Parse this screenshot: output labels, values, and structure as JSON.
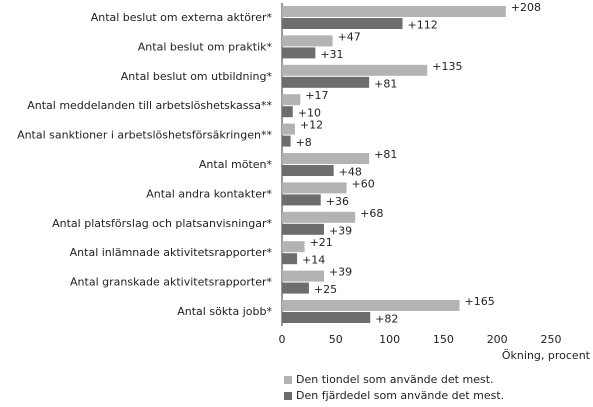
{
  "chart_data": {
    "type": "hbar",
    "categories": [
      "Antal beslut om externa aktörer*",
      "Antal beslut om praktik*",
      "Antal beslut om utbildning*",
      "Antal meddelanden till arbetslöshetskassa**",
      "Antal sanktioner i arbetslöshetsförsäkringen**",
      "Antal möten*",
      "Antal andra kontakter*",
      "Antal platsförslag och platsanvisningar*",
      "Antal inlämnade aktivitetsrapporter*",
      "Antal granskade aktivitetsrapporter*",
      "Antal sökta jobb*"
    ],
    "series": [
      {
        "name": "Den tiondel som använde det mest.",
        "color": "#b3b3b3",
        "values": [
          208,
          47,
          135,
          17,
          12,
          81,
          60,
          68,
          21,
          39,
          165
        ],
        "value_labels": [
          "+208",
          "+47",
          "+135",
          "+17",
          "+12",
          "+81",
          "+60",
          "+68",
          "+21",
          "+39",
          "+165"
        ]
      },
      {
        "name": "Den fjärdedel som använde det mest.",
        "color": "#6d6d6d",
        "values": [
          112,
          31,
          81,
          10,
          8,
          48,
          36,
          39,
          14,
          25,
          82
        ],
        "value_labels": [
          "+112",
          "+31",
          "+81",
          "+10",
          "+8",
          "+48",
          "+36",
          "+39",
          "+14",
          "+25",
          "+82"
        ]
      }
    ],
    "xlabel": "Ökning, procent",
    "xlim": [
      0,
      250
    ],
    "xticks": [
      0,
      50,
      100,
      150,
      200,
      250
    ],
    "grid": false
  }
}
